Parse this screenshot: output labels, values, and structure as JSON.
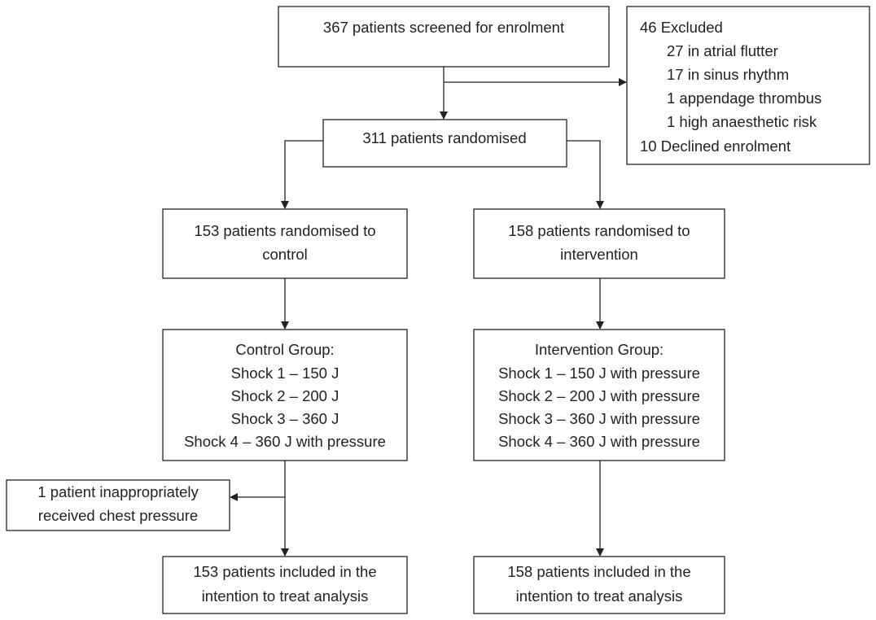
{
  "nodes": [
    {
      "lines": [
        "367 patients screened for enrolment"
      ]
    },
    {
      "lines": [
        "46 Excluded",
        "27 in atrial flutter",
        "17 in sinus rhythm",
        "1 appendage thrombus",
        "1 high anaesthetic risk",
        "10 Declined enrolment"
      ]
    },
    {
      "lines": [
        "311 patients randomised"
      ]
    },
    {
      "lines": [
        "153 patients randomised to",
        "control"
      ]
    },
    {
      "lines": [
        "158 patients randomised to",
        "intervention"
      ]
    },
    {
      "lines": [
        "Control Group:",
        "Shock 1 – 150 J",
        "Shock 2 – 200 J",
        "Shock 3 – 360 J",
        "Shock 4 – 360 J with pressure"
      ]
    },
    {
      "lines": [
        "Intervention Group:",
        "Shock 1 – 150 J with pressure",
        "Shock 2 – 200 J with pressure",
        "Shock 3 – 360 J with pressure",
        "Shock 4 – 360 J with pressure"
      ]
    },
    {
      "lines": [
        "1 patient inappropriately",
        "received chest pressure"
      ]
    },
    {
      "lines": [
        "153 patients included in the",
        "intention to treat analysis"
      ]
    },
    {
      "lines": [
        "158 patients included in the",
        "intention to treat analysis"
      ]
    }
  ]
}
